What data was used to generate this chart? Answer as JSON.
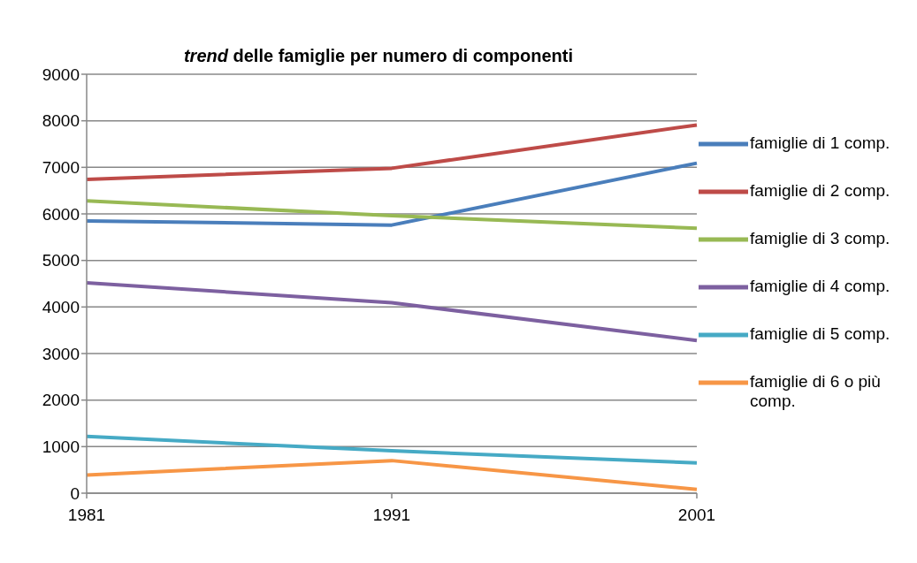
{
  "chart_data": {
    "type": "line",
    "title": "trend delle famiglie per numero di componenti",
    "categories": [
      "1981",
      "1991",
      "2001"
    ],
    "series": [
      {
        "name": "famiglie di 1 comp.",
        "color": "#4a7ebb",
        "values": [
          5850,
          5760,
          7090
        ]
      },
      {
        "name": "famiglie di 2 comp.",
        "color": "#be4b48",
        "values": [
          6740,
          6980,
          7910
        ]
      },
      {
        "name": "famiglie di 3 comp.",
        "color": "#98b954",
        "values": [
          6280,
          5960,
          5690
        ]
      },
      {
        "name": "famiglie di 4 comp.",
        "color": "#7d60a0",
        "values": [
          4520,
          4090,
          3280
        ]
      },
      {
        "name": "famiglie di 5 comp.",
        "color": "#46aac5",
        "values": [
          1220,
          910,
          650
        ]
      },
      {
        "name": "famiglie di 6 o più comp.",
        "color": "#f79646",
        "values": [
          390,
          700,
          80
        ]
      }
    ],
    "ylim": [
      0,
      9000
    ],
    "yticks": [
      0,
      1000,
      2000,
      3000,
      4000,
      5000,
      6000,
      7000,
      8000,
      9000
    ],
    "grid": "y",
    "legend": "right",
    "marker": "none",
    "line_style": "solid"
  }
}
